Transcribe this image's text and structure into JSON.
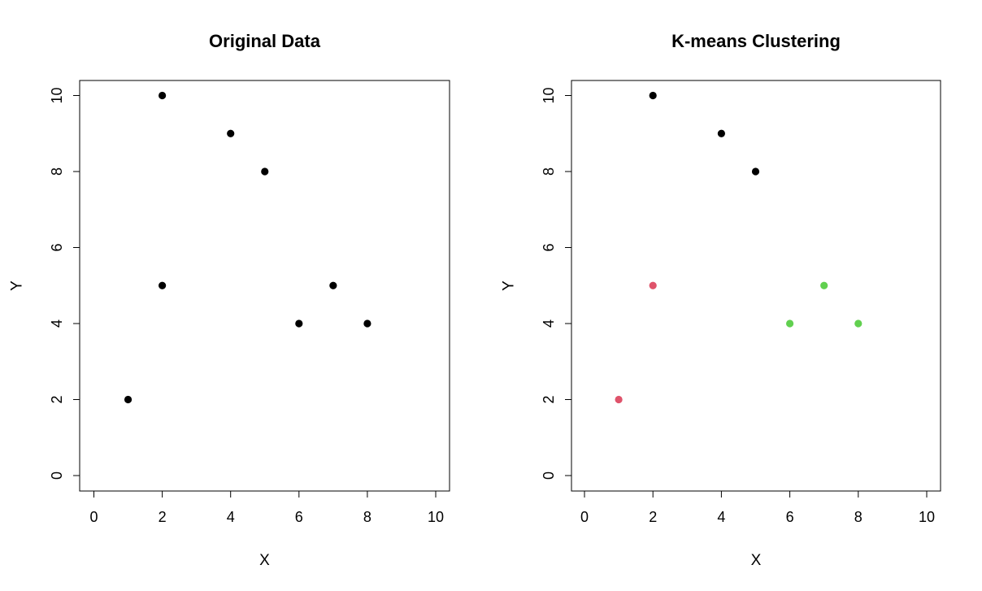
{
  "chart_data": [
    {
      "type": "scatter",
      "title": "Original Data",
      "xlabel": "X",
      "ylabel": "Y",
      "xlim": [
        0,
        10
      ],
      "ylim": [
        0,
        10
      ],
      "xticks": [
        0,
        2,
        4,
        6,
        8,
        10
      ],
      "yticks": [
        0,
        2,
        4,
        6,
        8,
        10
      ],
      "grid": false,
      "points": [
        {
          "x": 1,
          "y": 2,
          "color": "#000000"
        },
        {
          "x": 2,
          "y": 10,
          "color": "#000000"
        },
        {
          "x": 2,
          "y": 5,
          "color": "#000000"
        },
        {
          "x": 4,
          "y": 9,
          "color": "#000000"
        },
        {
          "x": 5,
          "y": 8,
          "color": "#000000"
        },
        {
          "x": 6,
          "y": 4,
          "color": "#000000"
        },
        {
          "x": 7,
          "y": 5,
          "color": "#000000"
        },
        {
          "x": 8,
          "y": 4,
          "color": "#000000"
        }
      ]
    },
    {
      "type": "scatter",
      "title": "K-means Clustering",
      "xlabel": "X",
      "ylabel": "Y",
      "xlim": [
        0,
        10
      ],
      "ylim": [
        0,
        10
      ],
      "xticks": [
        0,
        2,
        4,
        6,
        8,
        10
      ],
      "yticks": [
        0,
        2,
        4,
        6,
        8,
        10
      ],
      "grid": false,
      "points": [
        {
          "x": 1,
          "y": 2,
          "color": "#DF536B"
        },
        {
          "x": 2,
          "y": 10,
          "color": "#000000"
        },
        {
          "x": 2,
          "y": 5,
          "color": "#DF536B"
        },
        {
          "x": 4,
          "y": 9,
          "color": "#000000"
        },
        {
          "x": 5,
          "y": 8,
          "color": "#000000"
        },
        {
          "x": 6,
          "y": 4,
          "color": "#61D04F"
        },
        {
          "x": 7,
          "y": 5,
          "color": "#61D04F"
        },
        {
          "x": 8,
          "y": 4,
          "color": "#61D04F"
        }
      ]
    }
  ]
}
